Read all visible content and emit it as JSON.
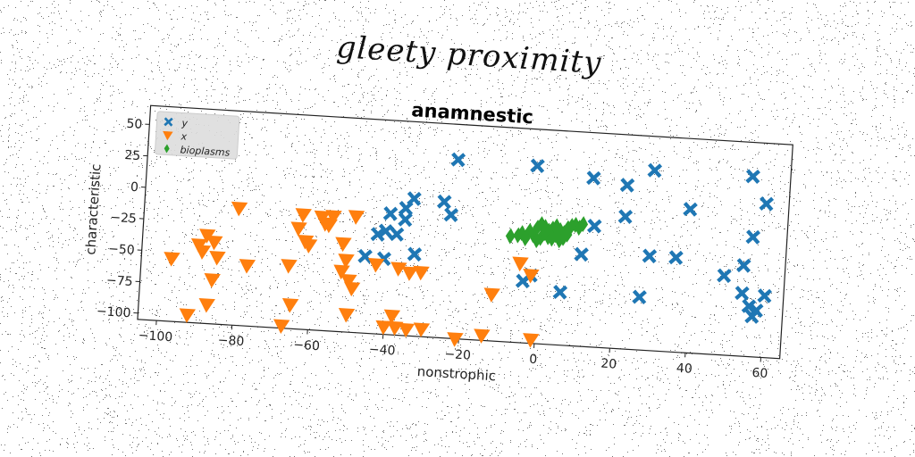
{
  "suptitle": "gleety proximity",
  "chart_data": {
    "type": "scatter",
    "title": "anamnestic",
    "xlabel": "nonstrophic",
    "ylabel": "characteristic",
    "xlim": [
      -105,
      65
    ],
    "ylim": [
      -105,
      65
    ],
    "xticks": [
      -100,
      -80,
      -60,
      -40,
      -20,
      0,
      20,
      40,
      60
    ],
    "yticks": [
      50,
      25,
      0,
      -25,
      -50,
      -75,
      -100
    ],
    "grid": false,
    "legend": "top-left",
    "series": [
      {
        "name": "y",
        "marker": "x",
        "color": "#1f77b4",
        "points": [
          [
            -23,
            37
          ],
          [
            -2,
            36
          ],
          [
            13,
            29
          ],
          [
            22,
            25
          ],
          [
            29,
            38
          ],
          [
            39,
            9
          ],
          [
            55,
            38
          ],
          [
            59,
            17
          ],
          [
            -34,
            4
          ],
          [
            -36,
            -4
          ],
          [
            -26,
            3
          ],
          [
            -24,
            -7
          ],
          [
            -40,
            -9
          ],
          [
            -36,
            -13
          ],
          [
            -41,
            -23
          ],
          [
            -38,
            -25
          ],
          [
            -43,
            -26
          ],
          [
            -33,
            -40
          ],
          [
            -46,
            -44
          ],
          [
            -41,
            -45
          ],
          [
            14,
            -9
          ],
          [
            22,
            0
          ],
          [
            11,
            -32
          ],
          [
            29,
            -30
          ],
          [
            36,
            -30
          ],
          [
            49,
            -42
          ],
          [
            54,
            -33
          ],
          [
            56,
            -10
          ],
          [
            54,
            -55
          ],
          [
            56,
            -65
          ],
          [
            58,
            -68
          ],
          [
            57,
            -73
          ],
          [
            60,
            -56
          ],
          [
            -2,
            -51
          ],
          [
            -4,
            -56
          ],
          [
            6,
            -63
          ],
          [
            27,
            -63
          ]
        ]
      },
      {
        "name": "x",
        "marker": "v",
        "color": "#ff7f0e",
        "points": [
          [
            -80,
            -12
          ],
          [
            -63,
            -14
          ],
          [
            -58,
            -15
          ],
          [
            -57,
            -20
          ],
          [
            -56,
            -21
          ],
          [
            -55,
            -14
          ],
          [
            -49,
            -13
          ],
          [
            -64,
            -25
          ],
          [
            -88,
            -35
          ],
          [
            -90,
            -43
          ],
          [
            -86,
            -40
          ],
          [
            -62,
            -35
          ],
          [
            -61,
            -38
          ],
          [
            -52,
            -35
          ],
          [
            -89,
            -48
          ],
          [
            -85,
            -52
          ],
          [
            -51,
            -48
          ],
          [
            -43,
            -50
          ],
          [
            -37,
            -52
          ],
          [
            -34,
            -55
          ],
          [
            -31,
            -54
          ],
          [
            -97,
            -55
          ],
          [
            -77,
            -57
          ],
          [
            -66,
            -55
          ],
          [
            -52,
            -57
          ],
          [
            -50,
            -64
          ],
          [
            -86,
            -70
          ],
          [
            -49,
            -70
          ],
          [
            -12,
            -68
          ],
          [
            -5,
            -42
          ],
          [
            -2,
            -51
          ],
          [
            -87,
            -90
          ],
          [
            -65,
            -86
          ],
          [
            -50,
            -91
          ],
          [
            -38,
            -90
          ],
          [
            -40,
            -99
          ],
          [
            -37,
            -99
          ],
          [
            -34,
            -100
          ],
          [
            -30,
            -99
          ],
          [
            -21,
            -105
          ],
          [
            -14,
            -101
          ],
          [
            -1,
            -102
          ],
          [
            -92,
            -99
          ],
          [
            -67,
            -103
          ]
        ]
      },
      {
        "name": "bioplasms",
        "marker": "d",
        "color": "#2ca02c",
        "points": [
          [
            -8,
            -21
          ],
          [
            -5,
            -18
          ],
          [
            -3,
            -16
          ],
          [
            -1,
            -13
          ],
          [
            0,
            -10
          ],
          [
            1,
            -12
          ],
          [
            2,
            -15
          ],
          [
            3,
            -13
          ],
          [
            4,
            -11
          ],
          [
            5,
            -14
          ],
          [
            6,
            -16
          ],
          [
            7,
            -12
          ],
          [
            8,
            -10
          ],
          [
            9,
            -9
          ],
          [
            10,
            -11
          ],
          [
            11,
            -8
          ],
          [
            -6,
            -20
          ],
          [
            -4,
            -22
          ],
          [
            -2,
            -19
          ],
          [
            0,
            -21
          ],
          [
            2,
            -20
          ],
          [
            4,
            -18
          ],
          [
            6,
            -20
          ],
          [
            1,
            -17
          ],
          [
            3,
            -21
          ],
          [
            5,
            -22
          ],
          [
            7,
            -17
          ],
          [
            -1,
            -23
          ]
        ]
      }
    ]
  }
}
